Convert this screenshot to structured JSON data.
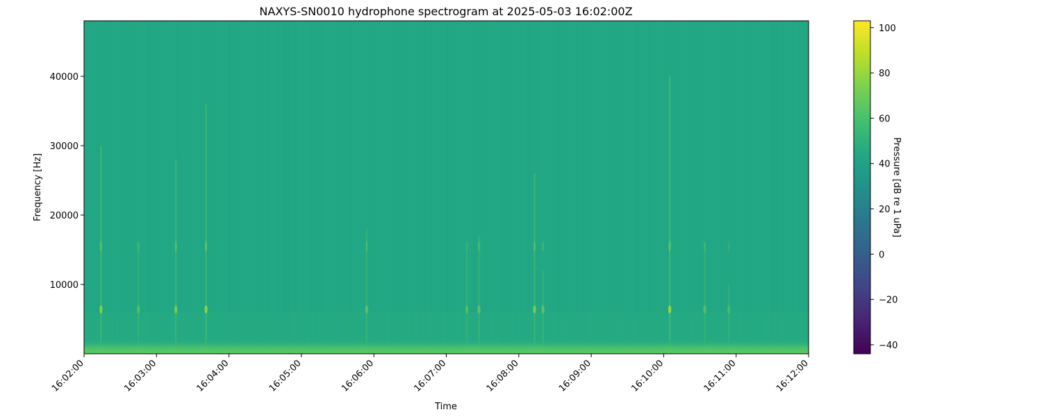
{
  "chart_data": {
    "type": "heatmap",
    "title": "NAXYS-SN0010 hydrophone spectrogram at 2025-05-03 16:02:00Z",
    "xlabel": "Time",
    "ylabel": "Frequency [Hz]",
    "xlim": [
      "16:02:00",
      "16:12:00"
    ],
    "ylim": [
      0,
      48000
    ],
    "x_ticks": [
      "16:02:00",
      "16:03:00",
      "16:04:00",
      "16:05:00",
      "16:06:00",
      "16:07:00",
      "16:08:00",
      "16:09:00",
      "16:10:00",
      "16:11:00",
      "16:12:00"
    ],
    "y_ticks": [
      10000,
      20000,
      30000,
      40000
    ],
    "colorbar": {
      "label": "Pressure [dB re 1 uPa]",
      "range": [
        -44,
        103
      ],
      "ticks": [
        -40,
        -20,
        0,
        20,
        40,
        60,
        80,
        100
      ],
      "colormap": "viridis"
    },
    "background_level_db": 50,
    "low_frequency_band": {
      "freq_max": 1000,
      "level_db": 68
    },
    "transients": [
      {
        "time": "16:02:14",
        "level_db": 70,
        "freq_max": 30000
      },
      {
        "time": "16:02:45",
        "level_db": 60,
        "freq_max": 16000
      },
      {
        "time": "16:03:16",
        "level_db": 68,
        "freq_max": 28000
      },
      {
        "time": "16:03:41",
        "level_db": 72,
        "freq_max": 36000
      },
      {
        "time": "16:05:54",
        "level_db": 62,
        "freq_max": 18000
      },
      {
        "time": "16:07:17",
        "level_db": 60,
        "freq_max": 15000
      },
      {
        "time": "16:07:27",
        "level_db": 62,
        "freq_max": 17000
      },
      {
        "time": "16:08:13",
        "level_db": 68,
        "freq_max": 26000
      },
      {
        "time": "16:08:20",
        "level_db": 62,
        "freq_max": 12000
      },
      {
        "time": "16:10:05",
        "level_db": 75,
        "freq_max": 40000
      },
      {
        "time": "16:10:34",
        "level_db": 60,
        "freq_max": 16000
      },
      {
        "time": "16:10:54",
        "level_db": 58,
        "freq_max": 10000
      }
    ]
  }
}
